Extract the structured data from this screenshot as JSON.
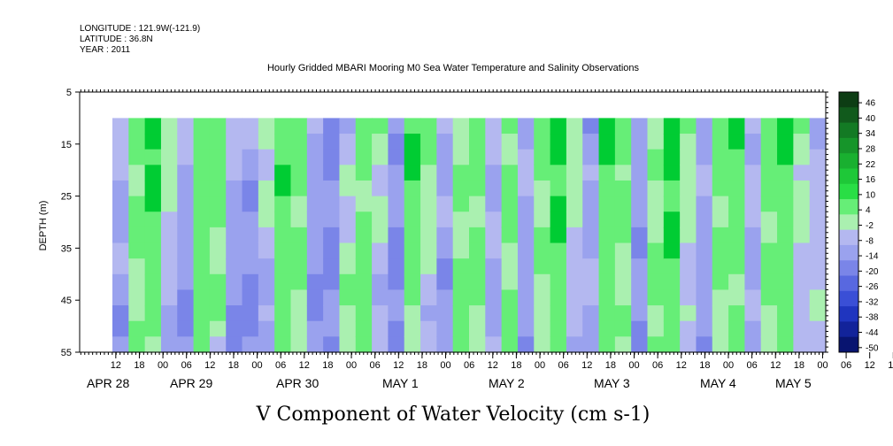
{
  "header": {
    "longitude": "LONGITUDE : 121.9W(-121.9)",
    "latitude": "LATITUDE : 36.8N",
    "year": "YEAR : 2011",
    "title": "Hourly Gridded MBARI Mooring M0 Sea Water Temperature and Salinity Observations"
  },
  "chart_data": {
    "type": "heatmap",
    "title": "Hourly Gridded MBARI Mooring M0 Sea Water Temperature and Salinity Observations",
    "xlabel": "V Component of Water Velocity (cm s-1)",
    "ylabel": "DEPTH (m)",
    "y_ticks": [
      5,
      15,
      25,
      35,
      45,
      55
    ],
    "ylim": [
      55,
      5
    ],
    "data_depth_range": [
      10,
      55
    ],
    "x_hour_ticks": [
      "12",
      "18",
      "00",
      "06",
      "12",
      "18",
      "00",
      "06",
      "12",
      "18",
      "00",
      "06",
      "12",
      "18",
      "00",
      "06",
      "12",
      "18",
      "00",
      "06",
      "12",
      "18",
      "00",
      "06",
      "12",
      "18",
      "00",
      "06",
      "12",
      "18",
      "00",
      "06",
      "12",
      "18",
      "00",
      "06"
    ],
    "x_date_labels": [
      "APR 28",
      "APR 29",
      "APR 30",
      "MAY  1",
      "MAY  2",
      "MAY  3",
      "MAY  4",
      "MAY  5"
    ],
    "colorbar_ticks": [
      "46",
      "40",
      "34",
      "28",
      "22",
      "16",
      "10",
      "4",
      "-2",
      "-8",
      "-14",
      "-20",
      "-26",
      "-32",
      "-38",
      "-44",
      "-50"
    ],
    "colorbar_range": [
      -50,
      52
    ],
    "colors": {
      "strong_positive": "#00cc33",
      "positive": "#66ee77",
      "weak_positive": "#aaf0b0",
      "weak_negative": "#b4b8f0",
      "negative": "#9aa2ee",
      "strong_negative": "#7a85e8"
    },
    "profiles": [
      {
        "hour": 0,
        "v_top": -6,
        "v_bottom": -10
      },
      {
        "hour": 4,
        "v_top": 8,
        "v_bottom": 4
      },
      {
        "hour": 8,
        "v_top": 20,
        "v_bottom": 6
      },
      {
        "hour": 12,
        "v_top": 6,
        "v_bottom": -8
      },
      {
        "hour": 16,
        "v_top": -6,
        "v_bottom": -12
      },
      {
        "hour": 20,
        "v_top": 12,
        "v_bottom": 10
      },
      {
        "hour": 24,
        "v_top": 14,
        "v_bottom": 2
      },
      {
        "hour": 28,
        "v_top": -4,
        "v_bottom": -14
      },
      {
        "hour": 32,
        "v_top": -8,
        "v_bottom": -14
      },
      {
        "hour": 36,
        "v_top": 4,
        "v_bottom": -10
      },
      {
        "hour": 40,
        "v_top": 16,
        "v_bottom": 10
      },
      {
        "hour": 44,
        "v_top": 8,
        "v_bottom": 6
      },
      {
        "hour": 48,
        "v_top": -8,
        "v_bottom": -12
      },
      {
        "hour": 52,
        "v_top": -12,
        "v_bottom": -14
      },
      {
        "hour": 56,
        "v_top": -4,
        "v_bottom": 6
      },
      {
        "hour": 60,
        "v_top": 6,
        "v_bottom": 12
      },
      {
        "hour": 64,
        "v_top": 4,
        "v_bottom": -8
      },
      {
        "hour": 68,
        "v_top": -10,
        "v_bottom": -14
      },
      {
        "hour": 72,
        "v_top": 18,
        "v_bottom": 4
      },
      {
        "hour": 76,
        "v_top": 10,
        "v_bottom": -6
      },
      {
        "hour": 80,
        "v_top": -6,
        "v_bottom": -12
      },
      {
        "hour": 84,
        "v_top": 4,
        "v_bottom": 10
      },
      {
        "hour": 88,
        "v_top": 10,
        "v_bottom": 6
      },
      {
        "hour": 92,
        "v_top": -4,
        "v_bottom": -8
      },
      {
        "hour": 96,
        "v_top": 8,
        "v_bottom": 6
      },
      {
        "hour": 100,
        "v_top": -6,
        "v_bottom": -10
      },
      {
        "hour": 104,
        "v_top": 8,
        "v_bottom": 4
      },
      {
        "hour": 108,
        "v_top": 20,
        "v_bottom": 10
      },
      {
        "hour": 112,
        "v_top": 4,
        "v_bottom": -6
      },
      {
        "hour": 116,
        "v_top": -10,
        "v_bottom": -4
      },
      {
        "hour": 120,
        "v_top": 16,
        "v_bottom": 10
      },
      {
        "hour": 124,
        "v_top": 10,
        "v_bottom": 4
      },
      {
        "hour": 128,
        "v_top": -8,
        "v_bottom": -12
      },
      {
        "hour": 132,
        "v_top": 4,
        "v_bottom": 8
      },
      {
        "hour": 136,
        "v_top": 20,
        "v_bottom": 12
      },
      {
        "hour": 140,
        "v_top": 6,
        "v_bottom": -4
      },
      {
        "hour": 144,
        "v_top": -6,
        "v_bottom": -10
      },
      {
        "hour": 148,
        "v_top": 10,
        "v_bottom": 4
      },
      {
        "hour": 152,
        "v_top": 16,
        "v_bottom": 6
      },
      {
        "hour": 156,
        "v_top": -4,
        "v_bottom": -8
      },
      {
        "hour": 160,
        "v_top": 10,
        "v_bottom": 6
      },
      {
        "hour": 164,
        "v_top": 18,
        "v_bottom": 8
      },
      {
        "hour": 168,
        "v_top": 4,
        "v_bottom": -4
      },
      {
        "hour": 172,
        "v_top": -4,
        "v_bottom": -2
      }
    ]
  }
}
